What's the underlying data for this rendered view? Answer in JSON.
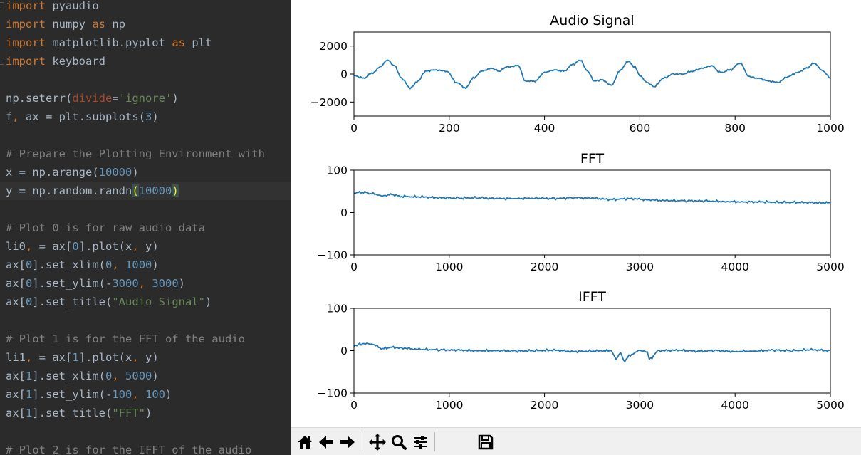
{
  "editor": {
    "lines": [
      "import pyaudio",
      "import numpy as np",
      "import matplotlib.pyplot as plt",
      "import keyboard",
      "",
      "np.seterr(divide='ignore')",
      "f, ax = plt.subplots(3)",
      "",
      "# Prepare the Plotting Environment with",
      "x = np.arange(10000)",
      "y = np.random.randn(10000)",
      "",
      "# Plot 0 is for raw audio data",
      "li0, = ax[0].plot(x, y)",
      "ax[0].set_xlim(0, 1000)",
      "ax[0].set_ylim(-3000, 3000)",
      "ax[0].set_title(\"Audio Signal\")",
      "",
      "# Plot 1 is for the FFT of the audio",
      "li1, = ax[1].plot(x, y)",
      "ax[1].set_xlim(0, 5000)",
      "ax[1].set_ylim(-100, 100)",
      "ax[1].set_title(\"FFT\")",
      "",
      "# Plot 2 is for the IFFT of the audio"
    ],
    "current_line": 10
  },
  "colors": {
    "editor_bg": "#2b2b2b",
    "keyword": "#cc7832",
    "string": "#6a8759",
    "number": "#6897bb",
    "comment": "#808080",
    "line_color": "#1f77b4"
  },
  "chart_data": [
    {
      "type": "line",
      "title": "Audio Signal",
      "xlim": [
        0,
        1000
      ],
      "ylim": [
        -3000,
        3000
      ],
      "xticks": [
        0,
        200,
        400,
        600,
        800,
        1000
      ],
      "yticks": [
        2000,
        0,
        -2000
      ],
      "xtick_labels": [
        "0",
        "200",
        "400",
        "600",
        "800",
        "1000"
      ],
      "ytick_labels": [
        "2000",
        "0",
        "−2000"
      ],
      "x": [
        0,
        20,
        40,
        55,
        70,
        85,
        100,
        118,
        135,
        150,
        170,
        195,
        215,
        235,
        250,
        270,
        290,
        305,
        320,
        345,
        360,
        380,
        400,
        420,
        440,
        460,
        475,
        490,
        505,
        520,
        540,
        560,
        575,
        590,
        600,
        615,
        630,
        650,
        670,
        690,
        710,
        730,
        750,
        770,
        790,
        810,
        830,
        850,
        870,
        890,
        910,
        930,
        950,
        965,
        985,
        1000
      ],
      "values": [
        -100,
        -300,
        100,
        500,
        1000,
        600,
        -300,
        -1000,
        -500,
        200,
        300,
        200,
        -600,
        -1000,
        -300,
        250,
        400,
        200,
        500,
        600,
        -500,
        -500,
        100,
        300,
        200,
        700,
        1000,
        200,
        -500,
        -400,
        -800,
        300,
        900,
        500,
        -100,
        -600,
        -900,
        -300,
        0,
        0,
        200,
        400,
        600,
        100,
        300,
        800,
        -200,
        -300,
        -500,
        -600,
        -200,
        100,
        400,
        800,
        200,
        -300
      ]
    },
    {
      "type": "line",
      "title": "FFT",
      "xlim": [
        0,
        5000
      ],
      "ylim": [
        -100,
        100
      ],
      "xticks": [
        0,
        1000,
        2000,
        3000,
        4000,
        5000
      ],
      "yticks": [
        100,
        0,
        -100
      ],
      "xtick_labels": [
        "0",
        "1000",
        "2000",
        "3000",
        "4000",
        "5000"
      ],
      "ytick_labels": [
        "100",
        "0",
        "−100"
      ],
      "x": [
        0,
        100,
        200,
        300,
        400,
        500,
        700,
        900,
        1100,
        1300,
        1500,
        1700,
        1900,
        2100,
        2300,
        2500,
        2700,
        2900,
        3100,
        3300,
        3500,
        3700,
        3900,
        4100,
        4300,
        4500,
        4700,
        4900,
        5000
      ],
      "values": [
        46,
        48,
        44,
        40,
        42,
        38,
        37,
        35,
        34,
        35,
        33,
        33,
        34,
        33,
        35,
        34,
        31,
        33,
        30,
        28,
        28,
        27,
        26,
        25,
        25,
        24,
        24,
        23,
        23
      ]
    },
    {
      "type": "line",
      "title": "IFFT",
      "xlim": [
        0,
        5000
      ],
      "ylim": [
        -100,
        100
      ],
      "xticks": [
        0,
        1000,
        2000,
        3000,
        4000,
        5000
      ],
      "yticks": [
        100,
        0,
        -100
      ],
      "xtick_labels": [
        "0",
        "1000",
        "2000",
        "3000",
        "4000",
        "5000"
      ],
      "ytick_labels": [
        "100",
        "0",
        "−100"
      ],
      "x": [
        0,
        60,
        120,
        200,
        300,
        400,
        500,
        700,
        900,
        1100,
        1300,
        1500,
        1700,
        1900,
        2100,
        2300,
        2500,
        2700,
        2750,
        2800,
        2830,
        2900,
        3000,
        3080,
        3100,
        3200,
        3400,
        3600,
        3800,
        4000,
        4200,
        4400,
        4600,
        4800,
        5000
      ],
      "values": [
        10,
        15,
        18,
        14,
        5,
        8,
        6,
        3,
        2,
        1,
        0,
        0,
        -1,
        0,
        1,
        -2,
        -1,
        0,
        -20,
        -5,
        -25,
        -10,
        0,
        -3,
        -20,
        0,
        1,
        -1,
        0,
        -2,
        -1,
        1,
        0,
        2,
        0
      ]
    }
  ],
  "toolbar": {
    "buttons": [
      "home-icon",
      "back-icon",
      "forward-icon",
      "pan-icon",
      "zoom-icon",
      "configure-subplots-icon",
      "save-icon"
    ]
  }
}
